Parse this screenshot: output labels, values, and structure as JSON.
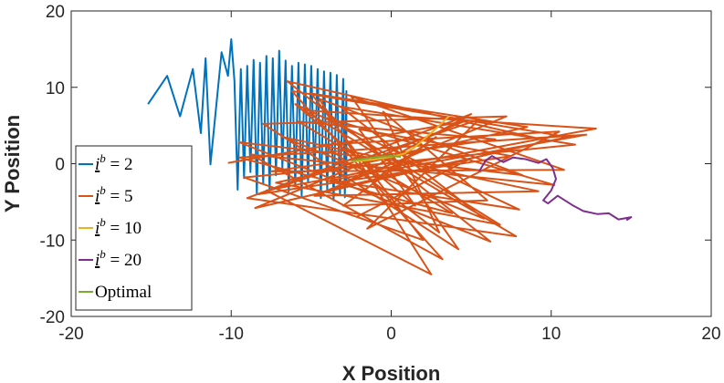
{
  "chart_data": {
    "type": "line",
    "title": "",
    "xlabel": "X Position",
    "ylabel": "Y Position",
    "xlim": [
      -20,
      20
    ],
    "ylim": [
      -20,
      20
    ],
    "xticks": [
      "-20",
      "-10",
      "0",
      "10",
      "20"
    ],
    "yticks": [
      "-20",
      "-10",
      "0",
      "10",
      "20"
    ],
    "grid": false,
    "legend_position": "left",
    "series": [
      {
        "name": "i^b = 2",
        "legend_base": "i",
        "legend_sup": "b",
        "legend_value": " = 2",
        "color": "#0072BD",
        "points": [
          [
            -15.2,
            7.8
          ],
          [
            -14.0,
            11.5
          ],
          [
            -13.2,
            6.2
          ],
          [
            -12.4,
            12.4
          ],
          [
            -11.9,
            4.0
          ],
          [
            -11.6,
            13.8
          ],
          [
            -11.3,
            -0.1
          ],
          [
            -10.6,
            14.6
          ],
          [
            -10.2,
            11.5
          ],
          [
            -10.0,
            16.3
          ],
          [
            -9.8,
            10.8
          ],
          [
            -9.6,
            -3.4
          ],
          [
            -9.4,
            12.4
          ],
          [
            -9.2,
            -1.9
          ],
          [
            -9.0,
            12.8
          ],
          [
            -8.8,
            -1.1
          ],
          [
            -8.6,
            13.6
          ],
          [
            -8.4,
            -4.0
          ],
          [
            -8.2,
            13.2
          ],
          [
            -8.0,
            -2.6
          ],
          [
            -7.8,
            14.1
          ],
          [
            -7.6,
            -3.8
          ],
          [
            -7.4,
            13.8
          ],
          [
            -7.2,
            -1.5
          ],
          [
            -7.0,
            14.8
          ],
          [
            -6.8,
            -0.6
          ],
          [
            -6.6,
            13.5
          ],
          [
            -6.4,
            -3.6
          ],
          [
            -6.2,
            12.8
          ],
          [
            -6.0,
            -2.9
          ],
          [
            -5.8,
            13.2
          ],
          [
            -5.6,
            -4.2
          ],
          [
            -5.4,
            13.0
          ],
          [
            -5.2,
            -2.4
          ],
          [
            -5.0,
            12.8
          ],
          [
            -4.8,
            -1.8
          ],
          [
            -4.6,
            12.4
          ],
          [
            -4.4,
            -4.5
          ],
          [
            -4.2,
            12.1
          ],
          [
            -4.0,
            -3.4
          ],
          [
            -3.8,
            11.9
          ],
          [
            -3.6,
            -4.8
          ],
          [
            -3.4,
            11.6
          ],
          [
            -3.2,
            -4.0
          ],
          [
            -3.0,
            11.1
          ],
          [
            -2.9,
            -4.4
          ],
          [
            -2.8,
            9.5
          ],
          [
            -2.8,
            -3.0
          ]
        ]
      },
      {
        "name": "i^b = 5",
        "legend_base": "i",
        "legend_sup": "b",
        "legend_value": " = 5",
        "color": "#D95319",
        "points": [
          [
            -10.2,
            0.1
          ],
          [
            4.5,
            5.5
          ],
          [
            -8.5,
            -5.8
          ],
          [
            9.8,
            3.0
          ],
          [
            -6.5,
            10.8
          ],
          [
            6.2,
            -10.2
          ],
          [
            -9.5,
            2.8
          ],
          [
            8.2,
            -1.5
          ],
          [
            -4.5,
            8.5
          ],
          [
            2.5,
            -14.5
          ],
          [
            -7.8,
            -3.5
          ],
          [
            12.8,
            4.6
          ],
          [
            -5.5,
            7.0
          ],
          [
            7.8,
            -9.5
          ],
          [
            -9.0,
            -4.5
          ],
          [
            5.0,
            6.5
          ],
          [
            -3.5,
            -3.2
          ],
          [
            11.0,
            3.5
          ],
          [
            -6.2,
            9.5
          ],
          [
            3.2,
            -12.5
          ],
          [
            -8.8,
            1.2
          ],
          [
            10.2,
            -2.8
          ],
          [
            -4.0,
            6.0
          ],
          [
            6.8,
            -8.0
          ],
          [
            -7.2,
            -2.5
          ],
          [
            8.5,
            4.8
          ],
          [
            -5.0,
            9.2
          ],
          [
            2.0,
            -10.0
          ],
          [
            -9.2,
            -1.8
          ],
          [
            11.5,
            2.5
          ],
          [
            -3.2,
            7.5
          ],
          [
            5.8,
            -7.2
          ],
          [
            -6.8,
            3.5
          ],
          [
            9.2,
            -3.6
          ],
          [
            -4.8,
            -4.2
          ],
          [
            7.2,
            6.2
          ],
          [
            -8.0,
            5.2
          ],
          [
            4.2,
            -11.2
          ],
          [
            -2.5,
            8.8
          ],
          [
            10.8,
            -0.8
          ],
          [
            -7.5,
            -1.0
          ],
          [
            6.5,
            3.2
          ],
          [
            -5.8,
            5.5
          ],
          [
            3.8,
            -6.5
          ],
          [
            -9.5,
            0.8
          ],
          [
            12.2,
            3.8
          ],
          [
            -3.8,
            -2.2
          ],
          [
            8.0,
            -6.0
          ],
          [
            -6.0,
            7.8
          ],
          [
            1.5,
            -5.5
          ],
          [
            -2.0,
            4.5
          ],
          [
            7.5,
            1.0
          ],
          [
            -8.3,
            -4.0
          ],
          [
            5.5,
            5.8
          ],
          [
            -1.5,
            -8.5
          ],
          [
            10.5,
            4.2
          ],
          [
            -4.2,
            2.5
          ],
          [
            3.0,
            -9.0
          ],
          [
            -0.5,
            6.8
          ],
          [
            6.0,
            -4.8
          ],
          [
            -3.0,
            -5.5
          ],
          [
            2.8,
            3.5
          ],
          [
            -1.0,
            -2.0
          ],
          [
            4.8,
            0.5
          ],
          [
            -2.2,
            -7.0
          ]
        ]
      },
      {
        "name": "i^b = 10",
        "legend_base": "i",
        "legend_sup": "b",
        "legend_value": " = 10",
        "color": "#EDB120",
        "points": [
          [
            -2.5,
            0.3
          ],
          [
            -1.2,
            0.5
          ],
          [
            0.0,
            0.9
          ],
          [
            0.8,
            1.3
          ],
          [
            1.5,
            2.2
          ],
          [
            2.2,
            3.5
          ],
          [
            2.8,
            4.6
          ],
          [
            3.6,
            6.2
          ]
        ]
      },
      {
        "name": "i^b = 20",
        "legend_base": "i",
        "legend_sup": "b",
        "legend_value": " = 20",
        "color": "#7E2F8E",
        "points": [
          [
            5.5,
            -1.0
          ],
          [
            5.9,
            0.4
          ],
          [
            6.3,
            1.0
          ],
          [
            7.0,
            0.2
          ],
          [
            7.6,
            0.8
          ],
          [
            8.4,
            0.6
          ],
          [
            9.2,
            0.1
          ],
          [
            9.7,
            0.6
          ],
          [
            10.1,
            -0.6
          ],
          [
            10.3,
            -2.0
          ],
          [
            10.0,
            -3.5
          ],
          [
            9.5,
            -4.8
          ],
          [
            9.8,
            -5.2
          ],
          [
            10.4,
            -4.2
          ],
          [
            11.3,
            -5.4
          ],
          [
            12.0,
            -6.2
          ],
          [
            12.9,
            -6.6
          ],
          [
            13.6,
            -6.5
          ],
          [
            14.2,
            -7.3
          ],
          [
            15.0,
            -7.0
          ],
          [
            14.7,
            -7.4
          ]
        ]
      },
      {
        "name": "Optimal",
        "legend_base": "",
        "legend_sup": "",
        "legend_value": "Optimal",
        "color": "#77AC30",
        "points": [
          [
            -2.5,
            0.4
          ],
          [
            -1.8,
            0.6
          ],
          [
            -0.8,
            0.9
          ],
          [
            0.0,
            1.0
          ],
          [
            0.6,
            0.9
          ]
        ]
      }
    ]
  }
}
